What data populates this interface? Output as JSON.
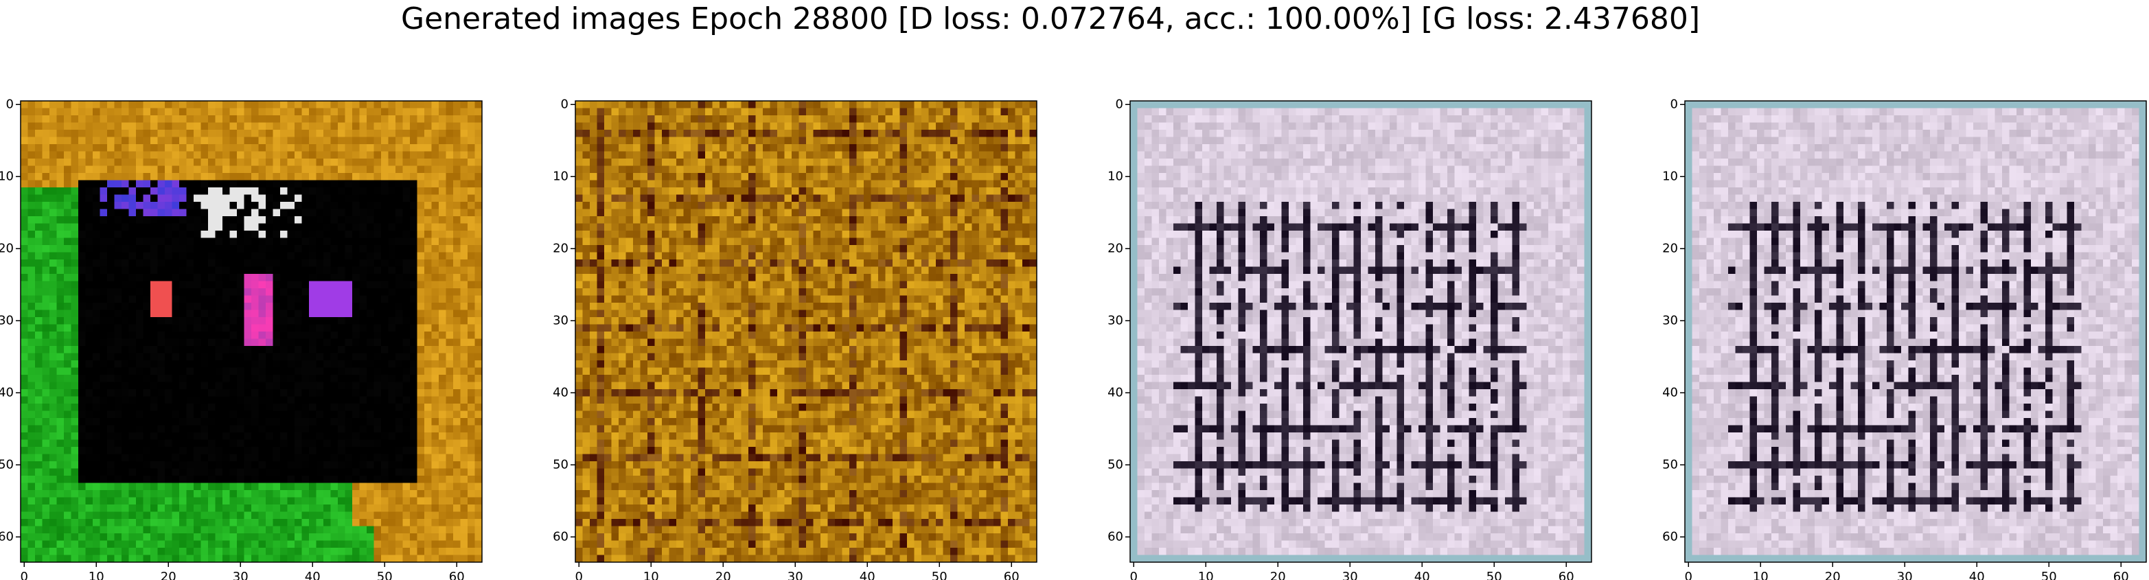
{
  "title": "Generated images Epoch 28800 [D loss: 0.072764, acc.: 100.00%] [G loss: 2.437680]",
  "chart_data": [
    {
      "type": "image",
      "xlim": [
        -0.5,
        63.5
      ],
      "ylim": [
        63.5,
        -0.5
      ],
      "xticks": [
        0,
        10,
        20,
        30,
        40,
        50,
        60
      ],
      "yticks": [
        0,
        10,
        20,
        30,
        40,
        50,
        60
      ]
    },
    {
      "type": "image",
      "xlim": [
        -0.5,
        63.5
      ],
      "ylim": [
        63.5,
        -0.5
      ],
      "xticks": [
        0,
        10,
        20,
        30,
        40,
        50,
        60
      ],
      "yticks": [
        0,
        10,
        20,
        30,
        40,
        50,
        60
      ]
    },
    {
      "type": "image",
      "xlim": [
        -0.5,
        63.5
      ],
      "ylim": [
        63.5,
        -0.5
      ],
      "xticks": [
        0,
        10,
        20,
        30,
        40,
        50,
        60
      ],
      "yticks": [
        0,
        10,
        20,
        30,
        40,
        50,
        60
      ]
    },
    {
      "type": "image",
      "xlim": [
        -0.5,
        63.5
      ],
      "ylim": [
        63.5,
        -0.5
      ],
      "xticks": [
        0,
        10,
        20,
        30,
        40,
        50,
        60
      ],
      "yticks": [
        0,
        10,
        20,
        30,
        40,
        50,
        60
      ]
    }
  ]
}
